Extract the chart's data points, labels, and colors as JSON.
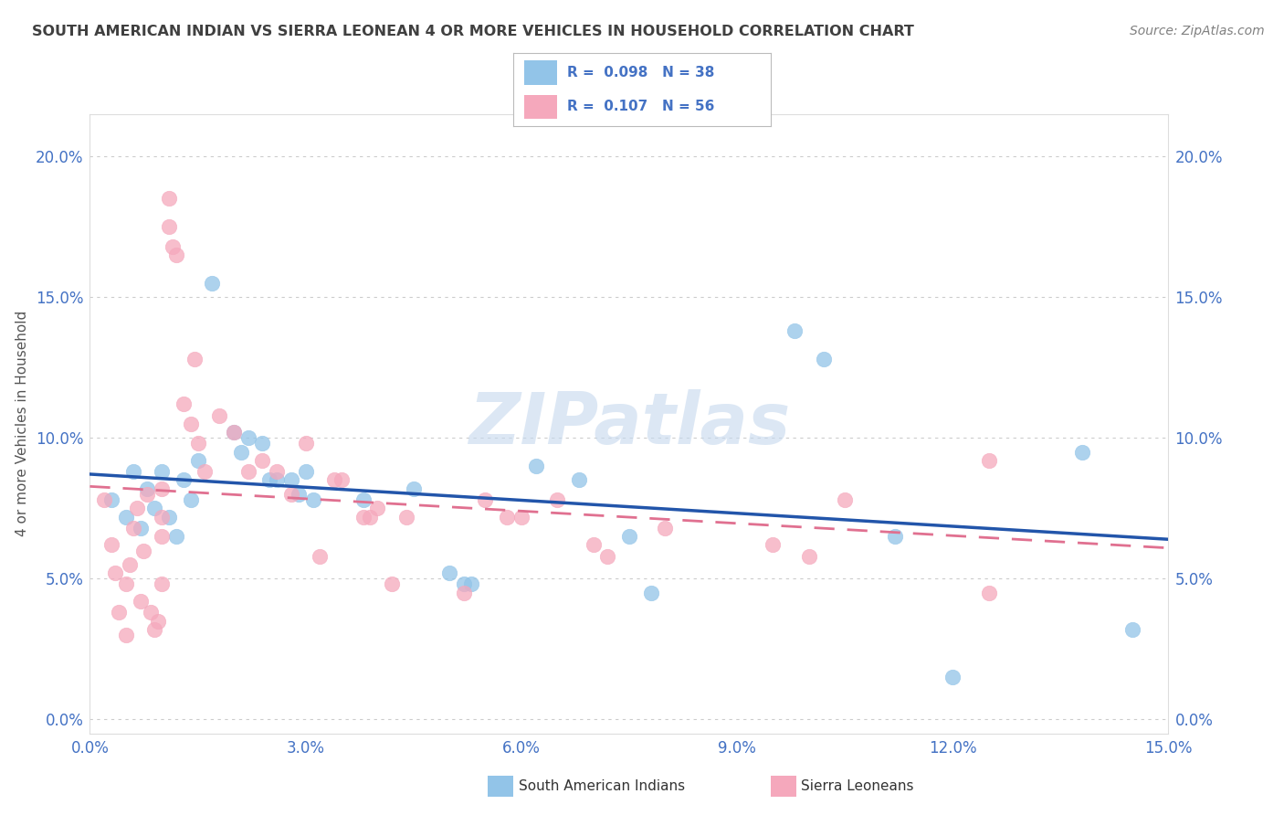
{
  "title": "SOUTH AMERICAN INDIAN VS SIERRA LEONEAN 4 OR MORE VEHICLES IN HOUSEHOLD CORRELATION CHART",
  "source": "Source: ZipAtlas.com",
  "ylabel": "4 or more Vehicles in Household",
  "xlim": [
    0.0,
    15.0
  ],
  "ylim": [
    -0.5,
    21.5
  ],
  "yticks": [
    0.0,
    5.0,
    10.0,
    15.0,
    20.0
  ],
  "xticks": [
    0.0,
    3.0,
    6.0,
    9.0,
    12.0,
    15.0
  ],
  "watermark": "ZIPatlas",
  "legend_blue_r": "0.098",
  "legend_blue_n": "38",
  "legend_pink_r": "0.107",
  "legend_pink_n": "56",
  "blue_color": "#92C4E8",
  "pink_color": "#F5A8BC",
  "trend_blue_color": "#2255AA",
  "trend_pink_color": "#E07090",
  "blue_scatter": [
    [
      0.3,
      7.8
    ],
    [
      0.5,
      7.2
    ],
    [
      0.6,
      8.8
    ],
    [
      0.7,
      6.8
    ],
    [
      0.8,
      8.2
    ],
    [
      0.9,
      7.5
    ],
    [
      1.0,
      8.8
    ],
    [
      1.1,
      7.2
    ],
    [
      1.2,
      6.5
    ],
    [
      1.3,
      8.5
    ],
    [
      1.4,
      7.8
    ],
    [
      1.5,
      9.2
    ],
    [
      1.7,
      15.5
    ],
    [
      2.0,
      10.2
    ],
    [
      2.1,
      9.5
    ],
    [
      2.2,
      10.0
    ],
    [
      2.4,
      9.8
    ],
    [
      2.5,
      8.5
    ],
    [
      2.6,
      8.5
    ],
    [
      2.8,
      8.5
    ],
    [
      2.9,
      8.0
    ],
    [
      3.0,
      8.8
    ],
    [
      3.1,
      7.8
    ],
    [
      3.8,
      7.8
    ],
    [
      4.5,
      8.2
    ],
    [
      5.0,
      5.2
    ],
    [
      5.2,
      4.8
    ],
    [
      5.3,
      4.8
    ],
    [
      6.2,
      9.0
    ],
    [
      6.8,
      8.5
    ],
    [
      7.5,
      6.5
    ],
    [
      7.8,
      4.5
    ],
    [
      9.8,
      13.8
    ],
    [
      10.2,
      12.8
    ],
    [
      11.2,
      6.5
    ],
    [
      12.0,
      1.5
    ],
    [
      13.8,
      9.5
    ],
    [
      14.5,
      3.2
    ]
  ],
  "pink_scatter": [
    [
      0.2,
      7.8
    ],
    [
      0.3,
      6.2
    ],
    [
      0.35,
      5.2
    ],
    [
      0.4,
      3.8
    ],
    [
      0.5,
      3.0
    ],
    [
      0.5,
      4.8
    ],
    [
      0.55,
      5.5
    ],
    [
      0.6,
      6.8
    ],
    [
      0.65,
      7.5
    ],
    [
      0.7,
      4.2
    ],
    [
      0.75,
      6.0
    ],
    [
      0.8,
      8.0
    ],
    [
      0.85,
      3.8
    ],
    [
      0.9,
      3.2
    ],
    [
      0.95,
      3.5
    ],
    [
      1.0,
      8.2
    ],
    [
      1.0,
      7.2
    ],
    [
      1.0,
      4.8
    ],
    [
      1.0,
      6.5
    ],
    [
      1.1,
      18.5
    ],
    [
      1.1,
      17.5
    ],
    [
      1.15,
      16.8
    ],
    [
      1.2,
      16.5
    ],
    [
      1.3,
      11.2
    ],
    [
      1.4,
      10.5
    ],
    [
      1.45,
      12.8
    ],
    [
      1.5,
      9.8
    ],
    [
      1.6,
      8.8
    ],
    [
      1.8,
      10.8
    ],
    [
      2.0,
      10.2
    ],
    [
      2.2,
      8.8
    ],
    [
      2.4,
      9.2
    ],
    [
      2.6,
      8.8
    ],
    [
      2.8,
      8.0
    ],
    [
      3.0,
      9.8
    ],
    [
      3.2,
      5.8
    ],
    [
      3.4,
      8.5
    ],
    [
      3.5,
      8.5
    ],
    [
      3.8,
      7.2
    ],
    [
      3.9,
      7.2
    ],
    [
      4.0,
      7.5
    ],
    [
      4.2,
      4.8
    ],
    [
      4.4,
      7.2
    ],
    [
      5.5,
      7.8
    ],
    [
      5.8,
      7.2
    ],
    [
      6.0,
      7.2
    ],
    [
      6.5,
      7.8
    ],
    [
      7.0,
      6.2
    ],
    [
      7.2,
      5.8
    ],
    [
      8.0,
      6.8
    ],
    [
      9.5,
      6.2
    ],
    [
      10.0,
      5.8
    ],
    [
      10.5,
      7.8
    ],
    [
      12.5,
      4.5
    ],
    [
      12.5,
      9.2
    ],
    [
      5.2,
      4.5
    ]
  ],
  "background_color": "#FFFFFF",
  "grid_color": "#CCCCCC",
  "axis_label_color": "#4472C4",
  "title_color": "#404040",
  "source_color": "#808080"
}
